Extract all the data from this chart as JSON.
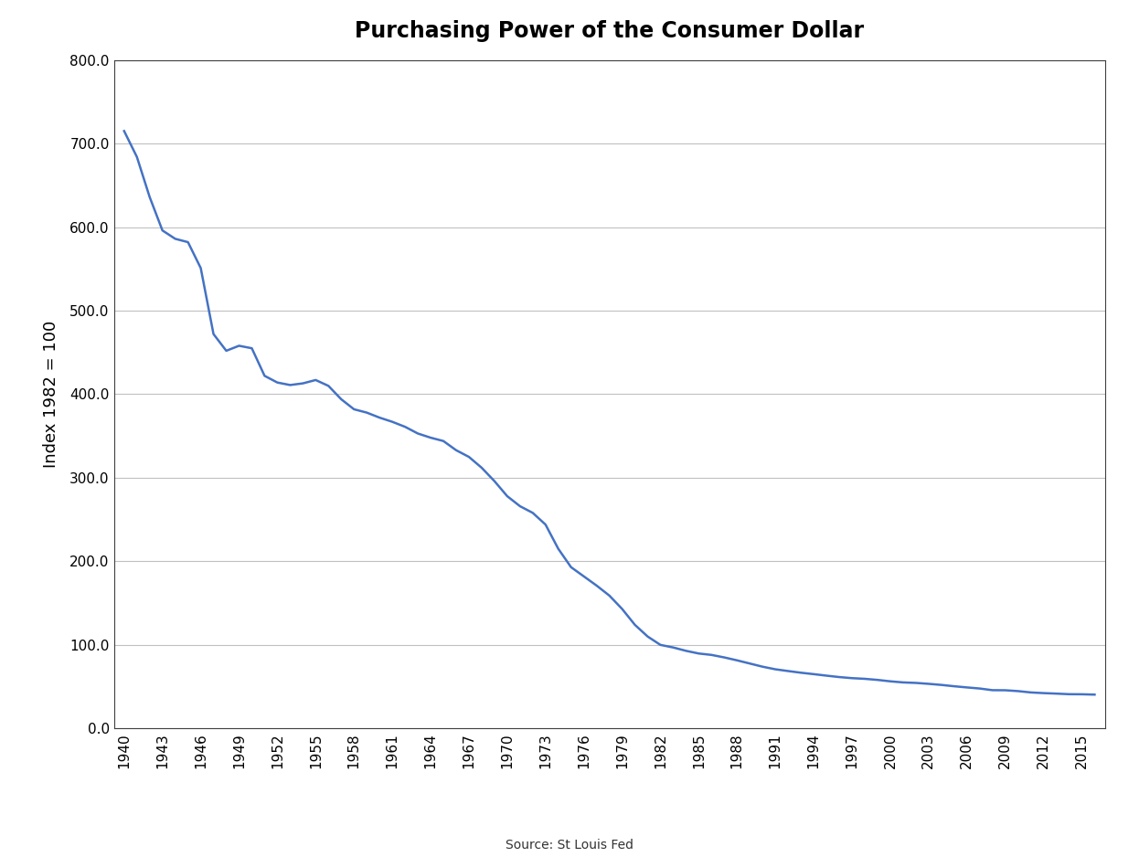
{
  "title": "Purchasing Power of the Consumer Dollar",
  "ylabel": "Index 1982 = 100",
  "source_label": "Source: St Louis Fed",
  "line_color": "#4472C4",
  "background_color": "#FFFFFF",
  "grid_color": "#C0C0C0",
  "ylim": [
    0.0,
    800.0
  ],
  "yticks": [
    0.0,
    100.0,
    200.0,
    300.0,
    400.0,
    500.0,
    600.0,
    700.0,
    800.0
  ],
  "xtick_labels": [
    "1940",
    "1943",
    "1946",
    "1949",
    "1952",
    "1955",
    "1958",
    "1961",
    "1964",
    "1967",
    "1970",
    "1973",
    "1976",
    "1979",
    "1982",
    "1985",
    "1988",
    "1991",
    "1994",
    "1997",
    "2000",
    "2003",
    "2006",
    "2009",
    "2012",
    "2015"
  ],
  "years": [
    1940,
    1941,
    1942,
    1943,
    1944,
    1945,
    1946,
    1947,
    1948,
    1949,
    1950,
    1951,
    1952,
    1953,
    1954,
    1955,
    1956,
    1957,
    1958,
    1959,
    1960,
    1961,
    1962,
    1963,
    1964,
    1965,
    1966,
    1967,
    1968,
    1969,
    1970,
    1971,
    1972,
    1973,
    1974,
    1975,
    1976,
    1977,
    1978,
    1979,
    1980,
    1981,
    1982,
    1983,
    1984,
    1985,
    1986,
    1987,
    1988,
    1989,
    1990,
    1991,
    1992,
    1993,
    1994,
    1995,
    1996,
    1997,
    1998,
    1999,
    2000,
    2001,
    2002,
    2003,
    2004,
    2005,
    2006,
    2007,
    2008,
    2009,
    2010,
    2011,
    2012,
    2013,
    2014,
    2015,
    2016
  ],
  "values": [
    715.0,
    684.0,
    636.0,
    596.0,
    586.0,
    582.0,
    551.0,
    472.0,
    452.0,
    458.0,
    455.0,
    422.0,
    414.0,
    411.0,
    413.0,
    417.0,
    410.0,
    394.0,
    382.0,
    378.0,
    372.0,
    367.0,
    361.0,
    353.0,
    348.0,
    344.0,
    333.0,
    325.0,
    312.0,
    296.0,
    278.0,
    266.0,
    258.0,
    244.0,
    215.0,
    193.0,
    182.0,
    171.0,
    159.0,
    143.0,
    124.0,
    110.0,
    100.0,
    96.9,
    92.9,
    89.7,
    88.0,
    85.0,
    81.5,
    77.7,
    73.9,
    70.8,
    68.7,
    66.7,
    65.0,
    63.2,
    61.5,
    60.2,
    59.4,
    58.1,
    56.4,
    55.1,
    54.5,
    53.4,
    52.1,
    50.5,
    49.1,
    47.8,
    45.8,
    45.7,
    44.7,
    43.1,
    42.3,
    41.7,
    41.0,
    40.9,
    40.5
  ]
}
